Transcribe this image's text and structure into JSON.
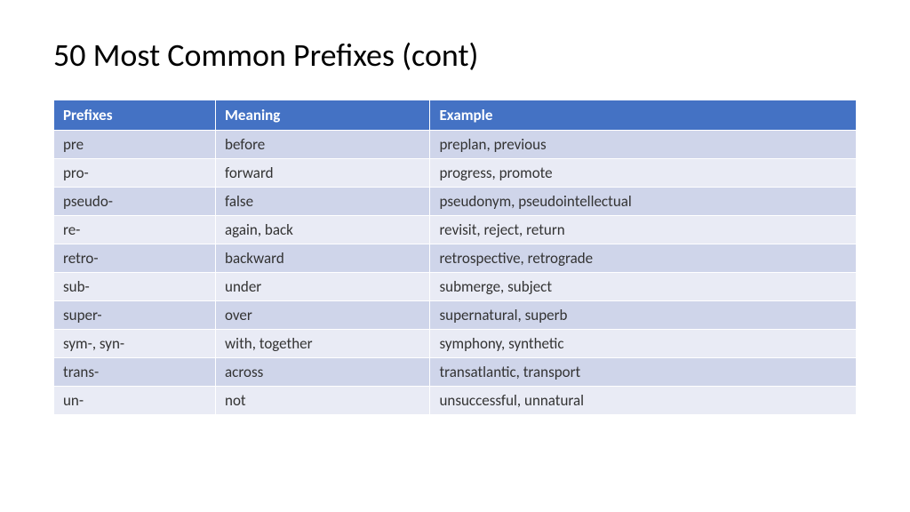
{
  "title": "50 Most Common Prefixes (cont)",
  "table": {
    "type": "table",
    "header_bg": "#4472c4",
    "header_text_color": "#ffffff",
    "row_odd_bg": "#cfd5ea",
    "row_even_bg": "#e9ebf5",
    "cell_text_color": "#333333",
    "font_size": 17,
    "title_font_size": 36,
    "columns": [
      "Prefixes",
      "Meaning",
      "Example"
    ],
    "rows": [
      [
        "pre",
        "before",
        "preplan, previous"
      ],
      [
        "pro-",
        "forward",
        "progress, promote"
      ],
      [
        "pseudo-",
        "false",
        "pseudonym, pseudointellectual"
      ],
      [
        "re-",
        "again, back",
        "revisit, reject, return"
      ],
      [
        "retro-",
        "backward",
        "retrospective, retrograde"
      ],
      [
        "sub-",
        "under",
        "submerge, subject"
      ],
      [
        "super-",
        "over",
        "supernatural, superb"
      ],
      [
        "sym-, syn-",
        "with, together",
        "symphony, synthetic"
      ],
      [
        "trans-",
        "across",
        "transatlantic, transport"
      ],
      [
        "un-",
        "not",
        "unsuccessful, unnatural"
      ]
    ]
  }
}
